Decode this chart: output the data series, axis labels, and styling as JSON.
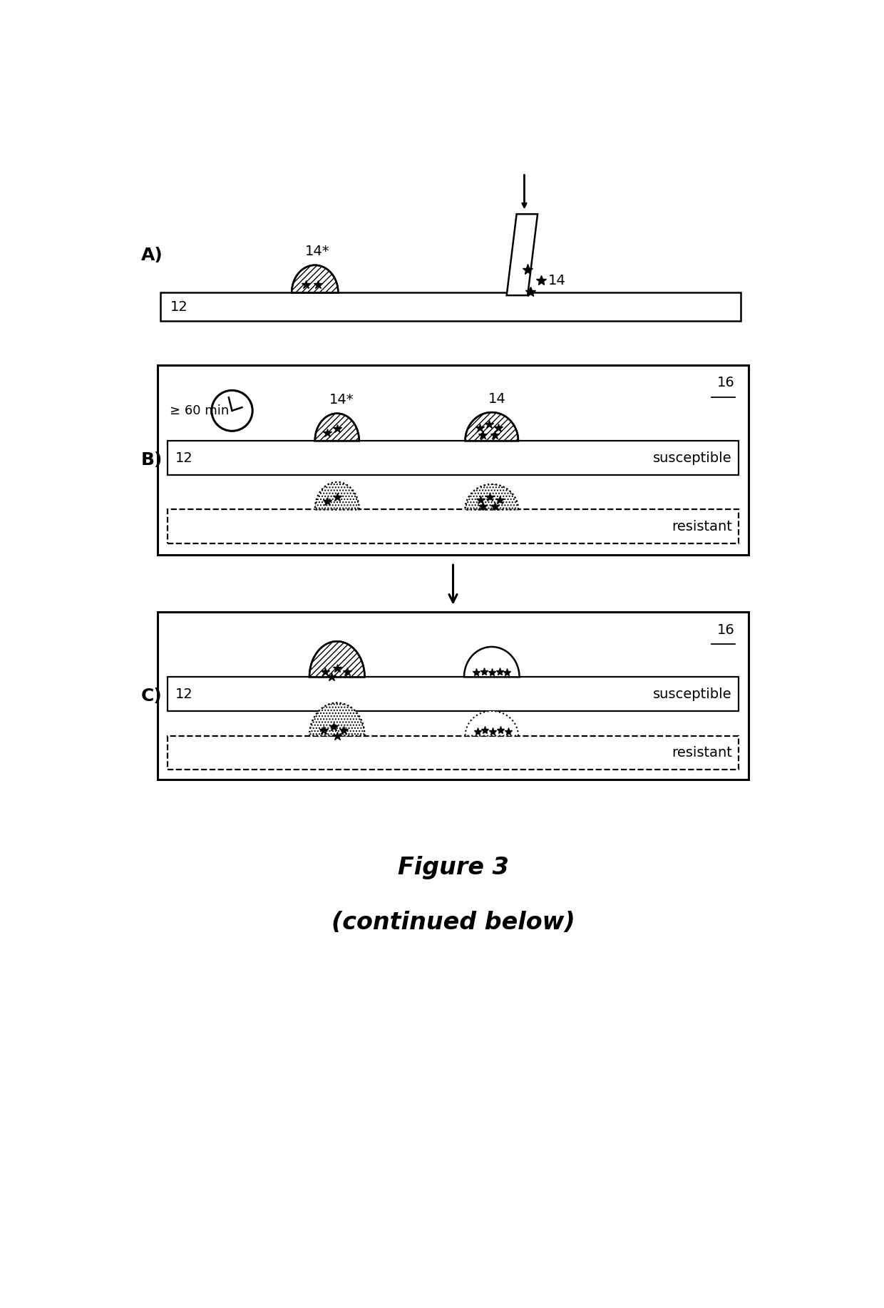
{
  "title": "Figure 3",
  "subtitle": "(continued below)",
  "bg_color": "#ffffff",
  "label_A": "A)",
  "label_B": "B)",
  "label_C": "C)",
  "label_12": "12",
  "label_14": "14",
  "label_14star": "14*",
  "label_16": "16",
  "label_susceptible": "susceptible",
  "label_resistant": "resistant",
  "label_60min": "≥ 60 min",
  "font_size_section": 18,
  "font_size_label": 14,
  "font_size_title": 22
}
